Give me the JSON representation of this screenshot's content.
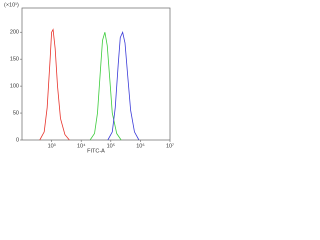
{
  "chart_data": {
    "type": "line",
    "y_unit_label": "(×10¹)",
    "xlabel": "FITC-A",
    "xscale": "log",
    "xlim": [
      100,
      10000000
    ],
    "xticks": [
      {
        "value": 1000,
        "label": "10³"
      },
      {
        "value": 10000,
        "label": "10⁴"
      },
      {
        "value": 100000,
        "label": "10⁵"
      },
      {
        "value": 1000000,
        "label": "10⁶"
      },
      {
        "value": 10000000,
        "label": "10⁷"
      }
    ],
    "ylim": [
      0,
      245
    ],
    "yticks": [
      0,
      50,
      100,
      150,
      200
    ],
    "series": [
      {
        "color": "#e8322a",
        "x": [
          398,
          562,
          708,
          891,
          1000,
          1122,
          1318,
          1585,
          1995,
          2818,
          3981
        ],
        "values": [
          0,
          15,
          60,
          150,
          200,
          205,
          170,
          100,
          40,
          10,
          0
        ]
      },
      {
        "color": "#3ccc3c",
        "x": [
          19953,
          28184,
          35481,
          44668,
          52481,
          63096,
          75858,
          93325,
          112202,
          158489,
          223872
        ],
        "values": [
          0,
          12,
          50,
          130,
          185,
          200,
          175,
          110,
          50,
          12,
          0
        ]
      },
      {
        "color": "#3a3ad8",
        "x": [
          79433,
          112202,
          141254,
          177828,
          208930,
          251189,
          301995,
          371535,
          467735,
          630957,
          891251
        ],
        "values": [
          0,
          15,
          60,
          140,
          190,
          200,
          180,
          120,
          55,
          15,
          0
        ]
      }
    ]
  }
}
